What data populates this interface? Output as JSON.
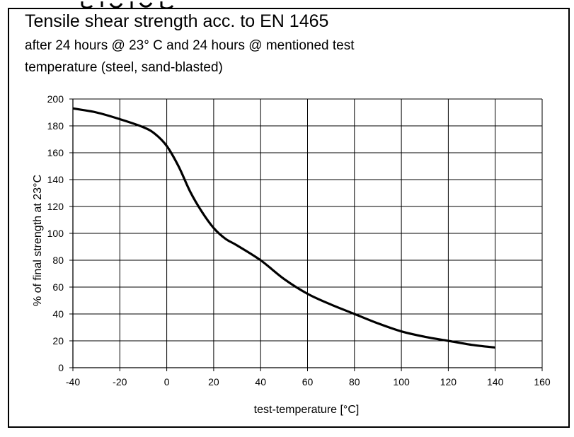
{
  "chart_data": {
    "type": "line",
    "title": "Tensile shear strength acc. to EN 1465",
    "subtitle_lines": [
      "after 24 hours @ 23°  C and 24 hours @ mentioned test",
      "temperature (steel, sand-blasted)"
    ],
    "xlabel": "test-temperature  [°C]",
    "ylabel": "% of final strength at  23°C",
    "xlim": [
      -40,
      160
    ],
    "ylim": [
      0,
      200
    ],
    "xticks": [
      -40,
      -20,
      0,
      20,
      40,
      60,
      80,
      100,
      120,
      140,
      160
    ],
    "yticks": [
      0,
      20,
      40,
      60,
      80,
      100,
      120,
      140,
      160,
      180,
      200
    ],
    "grid": true,
    "series": [
      {
        "x": [
          -40,
          -30,
          -20,
          -10,
          -5,
          0,
          5,
          10,
          15,
          20,
          25,
          30,
          40,
          50,
          60,
          70,
          80,
          90,
          100,
          110,
          120,
          130,
          140
        ],
        "y": [
          193,
          190,
          185,
          179,
          174,
          165,
          150,
          131,
          116,
          104,
          96,
          91,
          80,
          66,
          55,
          47,
          40,
          33,
          27,
          23,
          20,
          17,
          15
        ]
      }
    ],
    "colors": {
      "line": "#000000",
      "grid": "#000000",
      "background": "#ffffff"
    }
  }
}
